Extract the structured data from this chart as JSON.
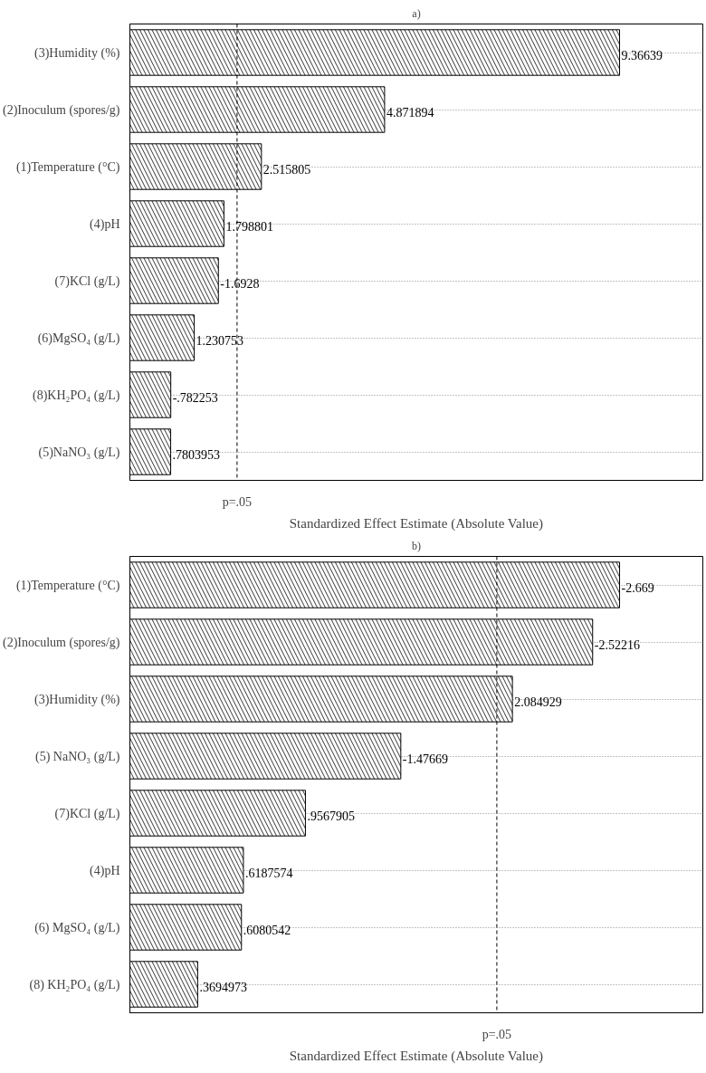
{
  "chart_data": [
    {
      "type": "bar",
      "orientation": "horizontal",
      "title": "a)",
      "xlabel": "Standardized Effect Estimate (Absolute Value)",
      "categories": [
        "(3)Humidity (%)",
        "(2)Inoculum (spores/g)",
        "(1)Temperature (°C)",
        "(4)pH",
        "(7)KCl (g/L)",
        "(6)MgSO₄ (g/L)",
        "(8)KH₂PO₄ (g/L)",
        "(5)NaNO₃ (g/L)"
      ],
      "values": [
        9.36639,
        4.871894,
        2.515805,
        1.798801,
        1.6928,
        1.230753,
        0.782253,
        0.7803953
      ],
      "value_labels": [
        "9.36639",
        "4.871894",
        "2.515805",
        "1.798801",
        null,
        "1.230753",
        null,
        ".7803953"
      ],
      "annotations": [
        {
          "text": "-1.6928",
          "x": 1.6928,
          "y": "(7)KCl (g/L)"
        },
        {
          "text": "-.782253",
          "x": 0.782253,
          "y": "(8)KH₂PO₄ (g/L)"
        }
      ],
      "color": "#000000",
      "grid": "y",
      "ref_lines": [
        {
          "axis": "x",
          "value": 2.05,
          "label": "p=.05",
          "line_style": "dashed",
          "color": "#000000"
        }
      ]
    },
    {
      "type": "bar",
      "orientation": "horizontal",
      "title": "b)",
      "xlabel": "Standardized Effect Estimate (Absolute Value)",
      "categories": [
        "(1)Temperature (°C)",
        "(2)Inoculum (spores/g)",
        "(3)Humidity (%)",
        "(5) NaNO₃ (g/L)",
        "(7)KCl (g/L)",
        "(4)pH",
        "(6) MgSO₄ (g/L)",
        "(8) KH₂PO₄ (g/L)"
      ],
      "values": [
        2.669,
        2.52216,
        2.084929,
        1.47669,
        0.9567905,
        0.6187574,
        0.6080542,
        0.3694973
      ],
      "value_labels": [
        null,
        null,
        "2.084929",
        null,
        ".9567905",
        ".6187574",
        ".6080542",
        ".3694973"
      ],
      "annotations": [
        {
          "text": "-2.669",
          "x": 2.669,
          "y": "(1)Temperature (°C)"
        },
        {
          "text": "-2.52216",
          "x": 2.52216,
          "y": "(2)Inoculum (spores/g)"
        },
        {
          "text": "-1.47669",
          "x": 1.47669,
          "y": "(5) NaNO₃ (g/L)"
        }
      ],
      "color": "#000000",
      "grid": "y",
      "ref_lines": [
        {
          "axis": "x",
          "value": 2.0,
          "label": "p=.05",
          "line_style": "dashed",
          "color": "#000000"
        }
      ]
    }
  ]
}
